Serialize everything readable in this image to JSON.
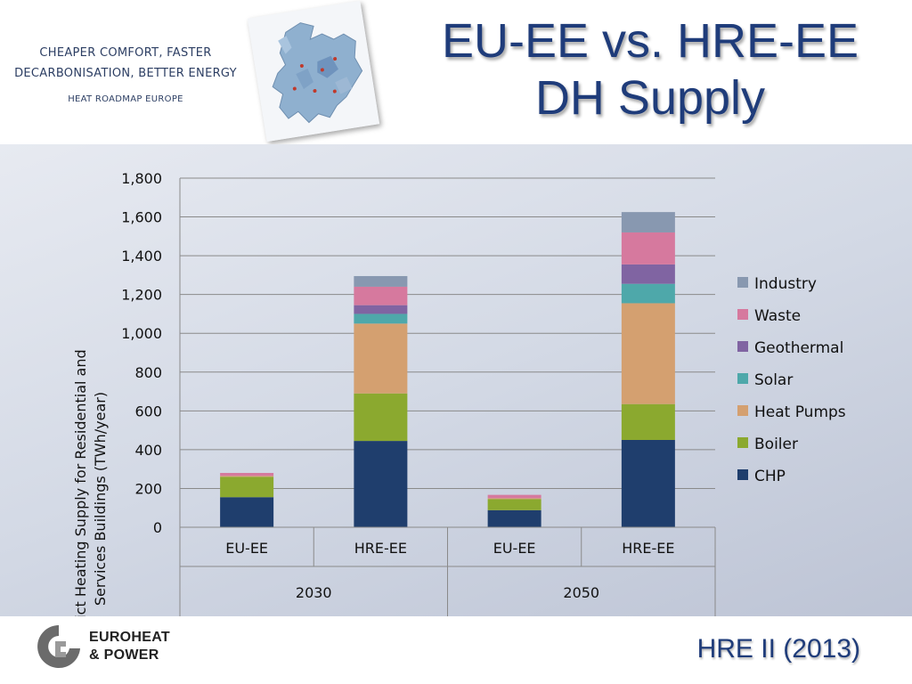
{
  "header": {
    "tagline_line1": "CHEAPER COMFORT, FASTER",
    "tagline_line2": "DECARBONISATION, BETTER ENERGY",
    "tagline_line3": "HEAT ROADMAP EUROPE",
    "title_line1": "EU-EE vs. HRE-EE",
    "title_line2": "DH Supply"
  },
  "footer": {
    "logo_line1": "EUROHEAT",
    "logo_line2": "& POWER",
    "reference": "HRE II (2013)"
  },
  "chart_data": {
    "type": "bar",
    "stacked": true,
    "ylabel_line1": "District Heating Supply for Residential and",
    "ylabel_line2": "Services Buildings (TWh/year)",
    "ylim": [
      0,
      1800
    ],
    "yticks": [
      0,
      200,
      400,
      600,
      800,
      1000,
      1200,
      1400,
      1600,
      1800
    ],
    "ytick_labels": [
      "0",
      "200",
      "400",
      "600",
      "800",
      "1,000",
      "1,200",
      "1,400",
      "1,600",
      "1,800"
    ],
    "grid": true,
    "legend_position": "right",
    "categories": [
      "EU-EE",
      "HRE-EE",
      "EU-EE",
      "HRE-EE"
    ],
    "groups": [
      {
        "label": "2030",
        "span": 2
      },
      {
        "label": "2050",
        "span": 2
      }
    ],
    "series": [
      {
        "name": "CHP",
        "color": "#1f3e6d",
        "values": [
          155,
          445,
          88,
          450
        ]
      },
      {
        "name": "Boiler",
        "color": "#8ba92f",
        "values": [
          105,
          245,
          57,
          185
        ]
      },
      {
        "name": "Heat Pumps",
        "color": "#d4a070",
        "values": [
          5,
          360,
          5,
          520
        ]
      },
      {
        "name": "Solar",
        "color": "#4ea8aa",
        "values": [
          0,
          50,
          0,
          100
        ]
      },
      {
        "name": "Geothermal",
        "color": "#8064a2",
        "values": [
          0,
          45,
          0,
          100
        ]
      },
      {
        "name": "Waste",
        "color": "#d6799e",
        "values": [
          15,
          95,
          17,
          165
        ]
      },
      {
        "name": "Industry",
        "color": "#8898b0",
        "values": [
          0,
          55,
          0,
          105
        ]
      }
    ]
  }
}
